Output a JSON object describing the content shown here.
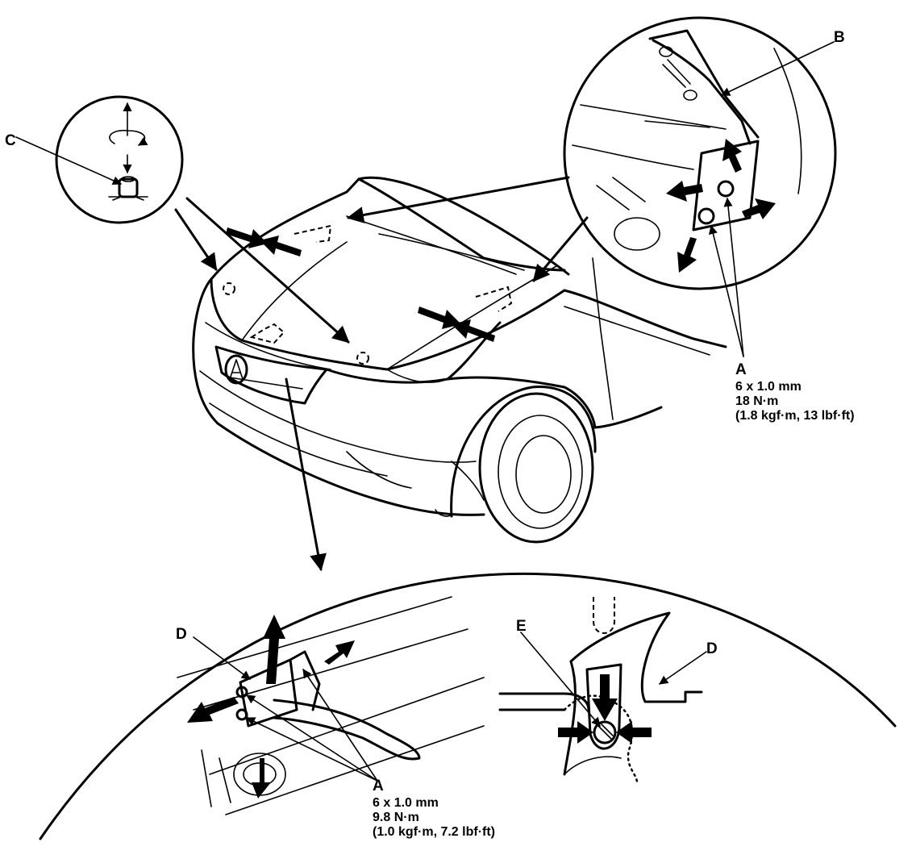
{
  "labels": {
    "A": "A",
    "B": "B",
    "C": "C",
    "D": "D",
    "E": "E"
  },
  "spec_upper": {
    "size": "6 x 1.0 mm",
    "torque": "18 N·m",
    "alt": "(1.8 kgf·m, 13 lbf·ft)"
  },
  "spec_lower": {
    "size": "6 x 1.0 mm",
    "torque": "9.8 N·m",
    "alt": "(1.0 kgf·m, 7.2 lbf·ft)"
  }
}
